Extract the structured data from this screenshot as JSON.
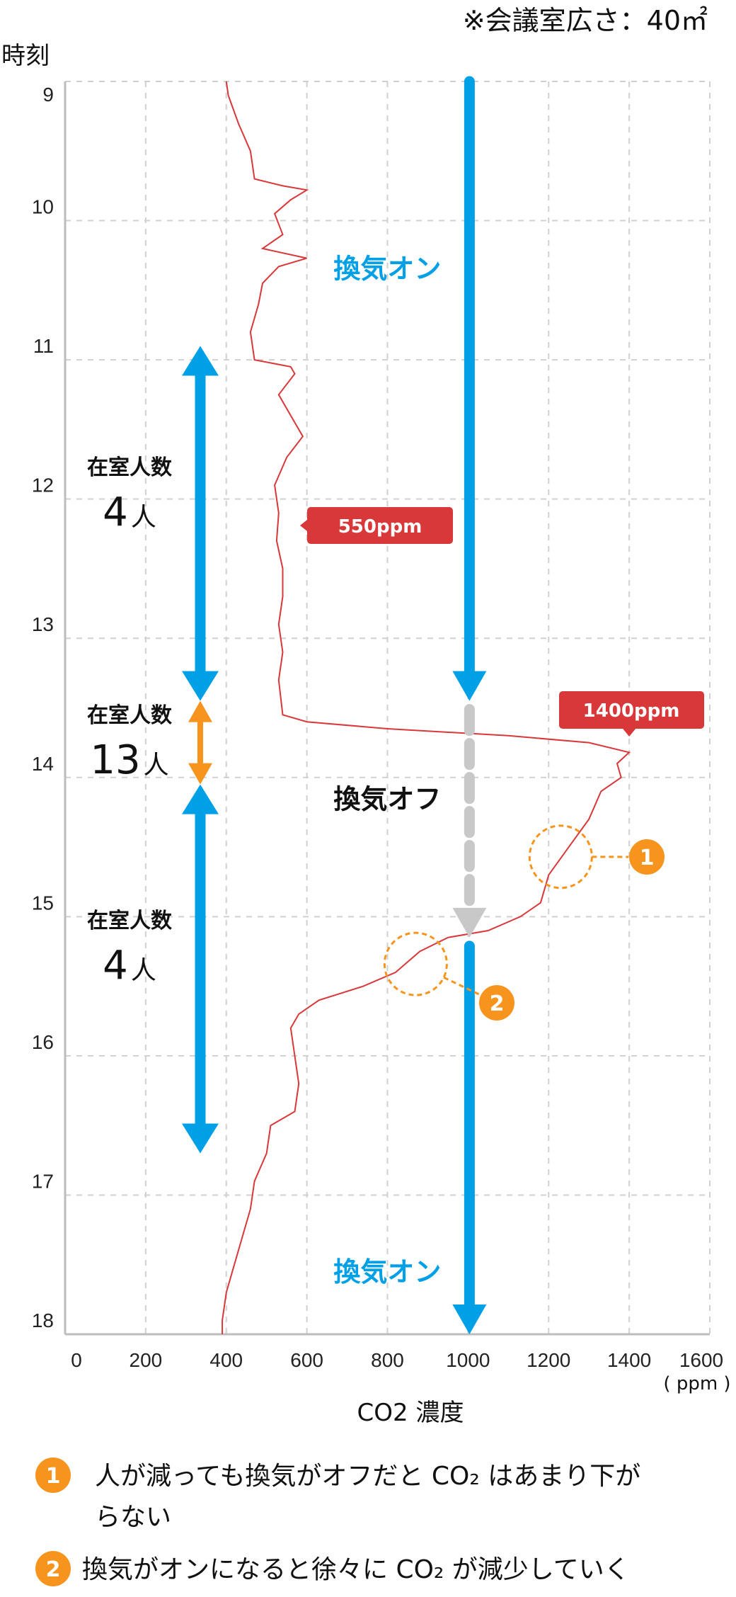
{
  "note_room_size": "※会議室広さ：40㎡",
  "colors": {
    "line": "#d9383a",
    "ventilation": "#00a0e6",
    "ventilation_off": "#c8c8c8",
    "occupancy_low": "#00a0e6",
    "occupancy_high": "#f7941d",
    "callout": "#d9383a",
    "marker": "#f7941d",
    "grid": "#d0d0d0"
  },
  "chart_data": {
    "type": "line",
    "orientation": "vertical-time",
    "ylabel": "時刻",
    "xlabel": "CO2 濃度",
    "xunit": "( ppm )",
    "xlim": [
      0,
      1600
    ],
    "ylim": [
      9,
      18
    ],
    "xticks": [
      "0",
      "200",
      "400",
      "600",
      "800",
      "1000",
      "1200",
      "1400",
      "1600"
    ],
    "yticks": [
      "9",
      "10",
      "11",
      "12",
      "13",
      "14",
      "15",
      "16",
      "17",
      "18"
    ],
    "grid": true,
    "series": [
      {
        "hour": [
          9.0,
          9.1,
          9.3,
          9.5,
          9.7,
          9.75,
          9.78,
          9.85,
          9.95,
          10.1,
          10.2,
          10.27,
          10.33,
          10.45,
          10.6,
          10.8,
          11.0,
          11.05,
          11.1,
          11.25,
          11.4,
          11.55,
          11.7,
          11.9,
          12.1,
          12.3,
          12.5,
          12.7,
          12.9,
          13.1,
          13.3,
          13.55,
          13.6,
          13.65,
          13.7,
          13.75,
          13.82,
          13.9,
          14.0,
          14.1,
          14.3,
          14.5,
          14.7,
          14.9,
          15.0,
          15.1,
          15.15,
          15.25,
          15.4,
          15.5,
          15.6,
          15.7,
          15.8,
          16.0,
          16.2,
          16.4,
          16.5,
          16.7,
          16.9,
          17.1,
          17.3,
          17.5,
          17.7,
          17.9,
          18.0
        ],
        "ppm": [
          400,
          405,
          430,
          460,
          470,
          540,
          600,
          560,
          520,
          540,
          490,
          600,
          530,
          490,
          480,
          460,
          470,
          560,
          570,
          530,
          560,
          590,
          550,
          520,
          530,
          525,
          540,
          540,
          530,
          540,
          530,
          540,
          600,
          800,
          1100,
          1300,
          1400,
          1370,
          1380,
          1330,
          1300,
          1250,
          1200,
          1180,
          1130,
          1050,
          950,
          880,
          820,
          740,
          630,
          580,
          560,
          570,
          580,
          570,
          510,
          500,
          470,
          460,
          440,
          420,
          400,
          390,
          390
        ]
      }
    ],
    "annotations": {
      "ventilation": [
        {
          "label": "換気オン",
          "from": 9,
          "to": 13.45,
          "state": "on"
        },
        {
          "label": "換気オフ",
          "from": 13.45,
          "to": 15.15,
          "state": "off"
        },
        {
          "label": "換気オン",
          "from": 15.15,
          "to": 18,
          "state": "on"
        }
      ],
      "occupancy": [
        {
          "title": "在室人数",
          "count": "4",
          "unit": "人",
          "from": 10.9,
          "to": 13.45
        },
        {
          "title": "在室人数",
          "count": "13",
          "unit": "人",
          "from": 13.45,
          "to": 14.05
        },
        {
          "title": "在室人数",
          "count": "4",
          "unit": "人",
          "from": 14.05,
          "to": 16.7
        }
      ],
      "callouts": [
        {
          "label": "550ppm",
          "hour": 12.2,
          "ppm": 550
        },
        {
          "label": "1400ppm",
          "hour": 13.82,
          "ppm": 1400
        }
      ],
      "markers": [
        {
          "number": "1",
          "hour": 14.57,
          "ppm": 1230
        },
        {
          "number": "2",
          "hour": 15.34,
          "ppm": 870
        }
      ]
    }
  },
  "notes": [
    {
      "number": "1",
      "lines": [
        "人が減っても換気がオフだと CO₂ はあまり下が",
        "らない"
      ]
    },
    {
      "number": "2",
      "lines": [
        "換気がオンになると徐々に CO₂ が減少していく"
      ]
    }
  ]
}
